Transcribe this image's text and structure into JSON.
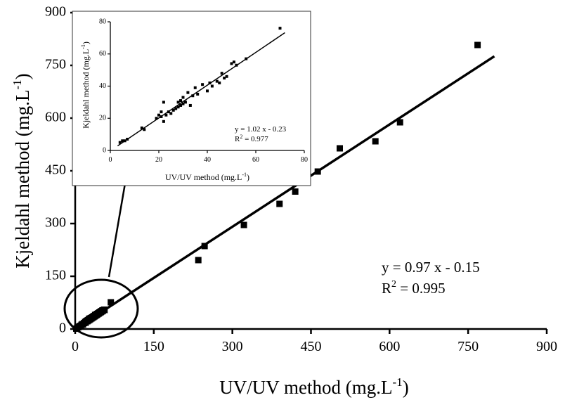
{
  "chart_data": [
    {
      "type": "scatter",
      "title": "",
      "xlabel": "UV/UV method (mg.L",
      "xlabel_sup": "-1",
      "xlabel_close": ")",
      "ylabel": "Kjeldahl method (mg.L",
      "ylabel_sup": "-1",
      "ylabel_close": ")",
      "xlim": [
        0,
        900
      ],
      "ylim": [
        0,
        900
      ],
      "xticks": [
        "0",
        "150",
        "300",
        "450",
        "600",
        "750",
        "900"
      ],
      "yticks": [
        "0",
        "150",
        "300",
        "450",
        "600",
        "750",
        "900"
      ],
      "grid": false,
      "legend": "none",
      "marker_color": "#000000",
      "equation": "y = 0.97 x - 0.15",
      "r2_prefix": "R",
      "r2_sup": "2",
      "r2_value": " = 0.995",
      "fit_line": {
        "slope": 0.97,
        "intercept": -0.15,
        "x_range": [
          0,
          800
        ]
      },
      "series": [
        {
          "points": [
            [
              2,
              1
            ],
            [
              4,
              4
            ],
            [
              5,
              6
            ],
            [
              6,
              5
            ],
            [
              8,
              7
            ],
            [
              10,
              9
            ],
            [
              12,
              12
            ],
            [
              14,
              14
            ],
            [
              15,
              13
            ],
            [
              17,
              17
            ],
            [
              19,
              20
            ],
            [
              20,
              18
            ],
            [
              21,
              22
            ],
            [
              22,
              23
            ],
            [
              23,
              22
            ],
            [
              24,
              25
            ],
            [
              25,
              24
            ],
            [
              26,
              28
            ],
            [
              27,
              26
            ],
            [
              28,
              30
            ],
            [
              29,
              28
            ],
            [
              30,
              31
            ],
            [
              31,
              30
            ],
            [
              32,
              33
            ],
            [
              33,
              32
            ],
            [
              34,
              35
            ],
            [
              35,
              34
            ],
            [
              36,
              37
            ],
            [
              37,
              36
            ],
            [
              38,
              40
            ],
            [
              39,
              38
            ],
            [
              40,
              41
            ],
            [
              41,
              40
            ],
            [
              42,
              43
            ],
            [
              43,
              42
            ],
            [
              44,
              45
            ],
            [
              45,
              44
            ],
            [
              46,
              47
            ],
            [
              47,
              46
            ],
            [
              48,
              49
            ],
            [
              49,
              48
            ],
            [
              50,
              51
            ],
            [
              51,
              50
            ],
            [
              52,
              53
            ],
            [
              53,
              52
            ],
            [
              55,
              55
            ],
            [
              56,
              54
            ],
            [
              68,
              76
            ],
            [
              235,
              196
            ],
            [
              247,
              236
            ],
            [
              322,
              296
            ],
            [
              390,
              356
            ],
            [
              420,
              391
            ],
            [
              463,
              448
            ],
            [
              505,
              514
            ],
            [
              573,
              534
            ],
            [
              620,
              588
            ],
            [
              768,
              808
            ]
          ]
        }
      ],
      "annotation": "circle-and-arrow-to-inset"
    },
    {
      "type": "scatter",
      "title": "",
      "xlabel": "UV/UV method (mg.L",
      "xlabel_sup": "-1",
      "xlabel_close": ")",
      "ylabel": "Kjeldahl method (mg.L",
      "ylabel_sup": "-1",
      "ylabel_close": ")",
      "xlim": [
        0,
        80
      ],
      "ylim": [
        0,
        80
      ],
      "xticks": [
        "0",
        "20",
        "40",
        "60",
        "80"
      ],
      "yticks": [
        "0",
        "20",
        "40",
        "60",
        "80"
      ],
      "grid": false,
      "legend": "none",
      "marker_color": "#000000",
      "equation": "y = 1.02 x - 0.23",
      "r2_prefix": "R",
      "r2_sup": "2",
      "r2_value": " = 0.977",
      "fit_line": {
        "slope": 1.02,
        "intercept": -0.23,
        "x_range": [
          3,
          72
        ]
      },
      "series": [
        {
          "points": [
            [
              4,
              5
            ],
            [
              5,
              6
            ],
            [
              6,
              6
            ],
            [
              7,
              7
            ],
            [
              13,
              14
            ],
            [
              14,
              13
            ],
            [
              19,
              20
            ],
            [
              20,
              22
            ],
            [
              21,
              21
            ],
            [
              21,
              24
            ],
            [
              22,
              18
            ],
            [
              22,
              30
            ],
            [
              23,
              22
            ],
            [
              24,
              24
            ],
            [
              25,
              23
            ],
            [
              26,
              25
            ],
            [
              27,
              26
            ],
            [
              28,
              27
            ],
            [
              28,
              30
            ],
            [
              29,
              28
            ],
            [
              29,
              31
            ],
            [
              30,
              29
            ],
            [
              30,
              33
            ],
            [
              31,
              30
            ],
            [
              32,
              36
            ],
            [
              33,
              28
            ],
            [
              34,
              34
            ],
            [
              35,
              39
            ],
            [
              36,
              35
            ],
            [
              38,
              41
            ],
            [
              40,
              37
            ],
            [
              41,
              42
            ],
            [
              42,
              40
            ],
            [
              44,
              43
            ],
            [
              45,
              42
            ],
            [
              46,
              48
            ],
            [
              47,
              45
            ],
            [
              48,
              46
            ],
            [
              50,
              54
            ],
            [
              51,
              55
            ],
            [
              52,
              53
            ],
            [
              56,
              57
            ],
            [
              70,
              76
            ]
          ]
        }
      ]
    }
  ]
}
